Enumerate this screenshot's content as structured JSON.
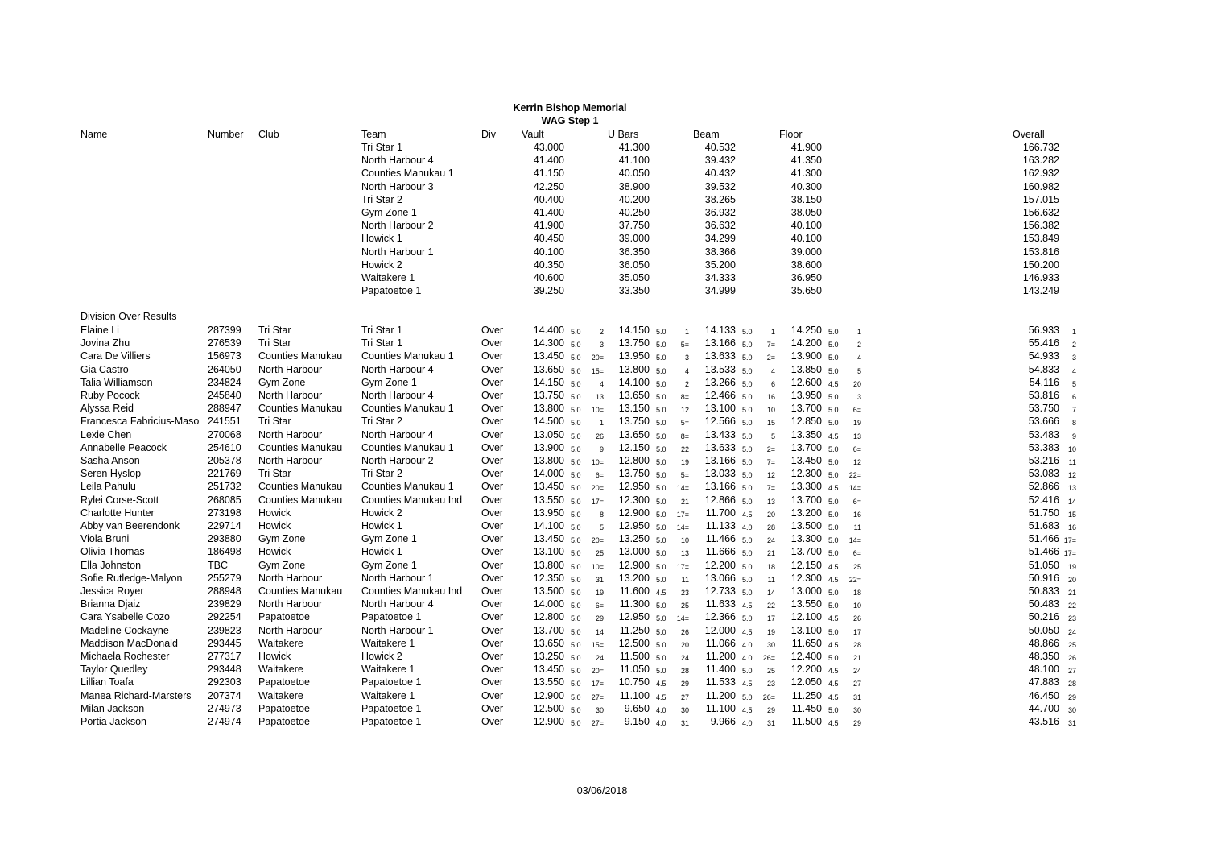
{
  "title": "Kerrin Bishop Memorial",
  "subtitle": "WAG Step 1",
  "headers": {
    "name": "Name",
    "number": "Number",
    "club": "Club",
    "team": "Team",
    "div": "Div",
    "vault": "Vault",
    "ubars": "U Bars",
    "beam": "Beam",
    "floor": "Floor",
    "overall": "Overall"
  },
  "teams": [
    {
      "team": "Tri Star 1",
      "vault": "43.000",
      "ubars": "41.300",
      "beam": "40.532",
      "floor": "41.900",
      "overall": "166.732"
    },
    {
      "team": "North Harbour 4",
      "vault": "41.400",
      "ubars": "41.100",
      "beam": "39.432",
      "floor": "41.350",
      "overall": "163.282"
    },
    {
      "team": "Counties Manukau 1",
      "vault": "41.150",
      "ubars": "40.050",
      "beam": "40.432",
      "floor": "41.300",
      "overall": "162.932"
    },
    {
      "team": "North Harbour 3",
      "vault": "42.250",
      "ubars": "38.900",
      "beam": "39.532",
      "floor": "40.300",
      "overall": "160.982"
    },
    {
      "team": "Tri Star 2",
      "vault": "40.400",
      "ubars": "40.200",
      "beam": "38.265",
      "floor": "38.150",
      "overall": "157.015"
    },
    {
      "team": "Gym Zone 1",
      "vault": "41.400",
      "ubars": "40.250",
      "beam": "36.932",
      "floor": "38.050",
      "overall": "156.632"
    },
    {
      "team": "North Harbour 2",
      "vault": "41.900",
      "ubars": "37.750",
      "beam": "36.632",
      "floor": "40.100",
      "overall": "156.382"
    },
    {
      "team": "Howick 1",
      "vault": "40.450",
      "ubars": "39.000",
      "beam": "34.299",
      "floor": "40.100",
      "overall": "153.849"
    },
    {
      "team": "North Harbour 1",
      "vault": "40.100",
      "ubars": "36.350",
      "beam": "38.366",
      "floor": "39.000",
      "overall": "153.816"
    },
    {
      "team": "Howick 2",
      "vault": "40.350",
      "ubars": "36.050",
      "beam": "35.200",
      "floor": "38.600",
      "overall": "150.200"
    },
    {
      "team": "Waitakere 1",
      "vault": "40.600",
      "ubars": "35.050",
      "beam": "34.333",
      "floor": "36.950",
      "overall": "146.933"
    },
    {
      "team": "Papatoetoe 1",
      "vault": "39.250",
      "ubars": "33.350",
      "beam": "34.999",
      "floor": "35.650",
      "overall": "143.249"
    }
  ],
  "division_heading": "Division Over Results",
  "individuals": [
    {
      "name": "Elaine Li",
      "number": "287399",
      "club": "Tri Star",
      "team": "Tri Star 1",
      "div": "Over",
      "vault": [
        "14.400",
        "5.0",
        "2"
      ],
      "ubars": [
        "14.150",
        "5.0",
        "1"
      ],
      "beam": [
        "14.133",
        "5.0",
        "1"
      ],
      "floor": [
        "14.250",
        "5.0",
        "1"
      ],
      "overall": [
        "56.933",
        "1"
      ]
    },
    {
      "name": "Jovina Zhu",
      "number": "276539",
      "club": "Tri Star",
      "team": "Tri Star 1",
      "div": "Over",
      "vault": [
        "14.300",
        "5.0",
        "3"
      ],
      "ubars": [
        "13.750",
        "5.0",
        "5="
      ],
      "beam": [
        "13.166",
        "5.0",
        "7="
      ],
      "floor": [
        "14.200",
        "5.0",
        "2"
      ],
      "overall": [
        "55.416",
        "2"
      ]
    },
    {
      "name": "Cara De Villiers",
      "number": "156973",
      "club": "Counties Manukau",
      "team": "Counties Manukau 1",
      "div": "Over",
      "vault": [
        "13.450",
        "5.0",
        "20="
      ],
      "ubars": [
        "13.950",
        "5.0",
        "3"
      ],
      "beam": [
        "13.633",
        "5.0",
        "2="
      ],
      "floor": [
        "13.900",
        "5.0",
        "4"
      ],
      "overall": [
        "54.933",
        "3"
      ]
    },
    {
      "name": "Gia Castro",
      "number": "264050",
      "club": "North Harbour",
      "team": "North Harbour 4",
      "div": "Over",
      "vault": [
        "13.650",
        "5.0",
        "15="
      ],
      "ubars": [
        "13.800",
        "5.0",
        "4"
      ],
      "beam": [
        "13.533",
        "5.0",
        "4"
      ],
      "floor": [
        "13.850",
        "5.0",
        "5"
      ],
      "overall": [
        "54.833",
        "4"
      ]
    },
    {
      "name": "Talia Williamson",
      "number": "234824",
      "club": "Gym Zone",
      "team": "Gym Zone 1",
      "div": "Over",
      "vault": [
        "14.150",
        "5.0",
        "4"
      ],
      "ubars": [
        "14.100",
        "5.0",
        "2"
      ],
      "beam": [
        "13.266",
        "5.0",
        "6"
      ],
      "floor": [
        "12.600",
        "4.5",
        "20"
      ],
      "overall": [
        "54.116",
        "5"
      ]
    },
    {
      "name": "Ruby Pocock",
      "number": "245840",
      "club": "North Harbour",
      "team": "North Harbour 4",
      "div": "Over",
      "vault": [
        "13.750",
        "5.0",
        "13"
      ],
      "ubars": [
        "13.650",
        "5.0",
        "8="
      ],
      "beam": [
        "12.466",
        "5.0",
        "16"
      ],
      "floor": [
        "13.950",
        "5.0",
        "3"
      ],
      "overall": [
        "53.816",
        "6"
      ]
    },
    {
      "name": "Alyssa Reid",
      "number": "288947",
      "club": "Counties Manukau",
      "team": "Counties Manukau 1",
      "div": "Over",
      "vault": [
        "13.800",
        "5.0",
        "10="
      ],
      "ubars": [
        "13.150",
        "5.0",
        "12"
      ],
      "beam": [
        "13.100",
        "5.0",
        "10"
      ],
      "floor": [
        "13.700",
        "5.0",
        "6="
      ],
      "overall": [
        "53.750",
        "7"
      ]
    },
    {
      "name": "Francesca Fabricius-Maso",
      "number": "241551",
      "club": "Tri Star",
      "team": "Tri Star 2",
      "div": "Over",
      "vault": [
        "14.500",
        "5.0",
        "1"
      ],
      "ubars": [
        "13.750",
        "5.0",
        "5="
      ],
      "beam": [
        "12.566",
        "5.0",
        "15"
      ],
      "floor": [
        "12.850",
        "5.0",
        "19"
      ],
      "overall": [
        "53.666",
        "8"
      ]
    },
    {
      "name": "Lexie Chen",
      "number": "270068",
      "club": "North Harbour",
      "team": "North Harbour 4",
      "div": "Over",
      "vault": [
        "13.050",
        "5.0",
        "26"
      ],
      "ubars": [
        "13.650",
        "5.0",
        "8="
      ],
      "beam": [
        "13.433",
        "5.0",
        "5"
      ],
      "floor": [
        "13.350",
        "4.5",
        "13"
      ],
      "overall": [
        "53.483",
        "9"
      ]
    },
    {
      "name": "Annabelle Peacock",
      "number": "254610",
      "club": "Counties Manukau",
      "team": "Counties Manukau 1",
      "div": "Over",
      "vault": [
        "13.900",
        "5.0",
        "9"
      ],
      "ubars": [
        "12.150",
        "5.0",
        "22"
      ],
      "beam": [
        "13.633",
        "5.0",
        "2="
      ],
      "floor": [
        "13.700",
        "5.0",
        "6="
      ],
      "overall": [
        "53.383",
        "10"
      ]
    },
    {
      "name": "Sasha Anson",
      "number": "205378",
      "club": "North Harbour",
      "team": "North Harbour 2",
      "div": "Over",
      "vault": [
        "13.800",
        "5.0",
        "10="
      ],
      "ubars": [
        "12.800",
        "5.0",
        "19"
      ],
      "beam": [
        "13.166",
        "5.0",
        "7="
      ],
      "floor": [
        "13.450",
        "5.0",
        "12"
      ],
      "overall": [
        "53.216",
        "11"
      ]
    },
    {
      "name": "Seren Hyslop",
      "number": "221769",
      "club": "Tri Star",
      "team": "Tri Star 2",
      "div": "Over",
      "vault": [
        "14.000",
        "5.0",
        "6="
      ],
      "ubars": [
        "13.750",
        "5.0",
        "5="
      ],
      "beam": [
        "13.033",
        "5.0",
        "12"
      ],
      "floor": [
        "12.300",
        "5.0",
        "22="
      ],
      "overall": [
        "53.083",
        "12"
      ]
    },
    {
      "name": "Leila Pahulu",
      "number": "251732",
      "club": "Counties Manukau",
      "team": "Counties Manukau 1",
      "div": "Over",
      "vault": [
        "13.450",
        "5.0",
        "20="
      ],
      "ubars": [
        "12.950",
        "5.0",
        "14="
      ],
      "beam": [
        "13.166",
        "5.0",
        "7="
      ],
      "floor": [
        "13.300",
        "4.5",
        "14="
      ],
      "overall": [
        "52.866",
        "13"
      ]
    },
    {
      "name": "Rylei Corse-Scott",
      "number": "268085",
      "club": "Counties Manukau",
      "team": "Counties Manukau Ind",
      "div": "Over",
      "vault": [
        "13.550",
        "5.0",
        "17="
      ],
      "ubars": [
        "12.300",
        "5.0",
        "21"
      ],
      "beam": [
        "12.866",
        "5.0",
        "13"
      ],
      "floor": [
        "13.700",
        "5.0",
        "6="
      ],
      "overall": [
        "52.416",
        "14"
      ]
    },
    {
      "name": "Charlotte Hunter",
      "number": "273198",
      "club": "Howick",
      "team": "Howick 2",
      "div": "Over",
      "vault": [
        "13.950",
        "5.0",
        "8"
      ],
      "ubars": [
        "12.900",
        "5.0",
        "17="
      ],
      "beam": [
        "11.700",
        "4.5",
        "20"
      ],
      "floor": [
        "13.200",
        "5.0",
        "16"
      ],
      "overall": [
        "51.750",
        "15"
      ]
    },
    {
      "name": "Abby van Beerendonk",
      "number": "229714",
      "club": "Howick",
      "team": "Howick 1",
      "div": "Over",
      "vault": [
        "14.100",
        "5.0",
        "5"
      ],
      "ubars": [
        "12.950",
        "5.0",
        "14="
      ],
      "beam": [
        "11.133",
        "4.0",
        "28"
      ],
      "floor": [
        "13.500",
        "5.0",
        "11"
      ],
      "overall": [
        "51.683",
        "16"
      ]
    },
    {
      "name": "Viola Bruni",
      "number": "293880",
      "club": "Gym Zone",
      "team": "Gym Zone 1",
      "div": "Over",
      "vault": [
        "13.450",
        "5.0",
        "20="
      ],
      "ubars": [
        "13.250",
        "5.0",
        "10"
      ],
      "beam": [
        "11.466",
        "5.0",
        "24"
      ],
      "floor": [
        "13.300",
        "5.0",
        "14="
      ],
      "overall": [
        "51.466",
        "17="
      ]
    },
    {
      "name": "Olivia Thomas",
      "number": "186498",
      "club": "Howick",
      "team": "Howick 1",
      "div": "Over",
      "vault": [
        "13.100",
        "5.0",
        "25"
      ],
      "ubars": [
        "13.000",
        "5.0",
        "13"
      ],
      "beam": [
        "11.666",
        "5.0",
        "21"
      ],
      "floor": [
        "13.700",
        "5.0",
        "6="
      ],
      "overall": [
        "51.466",
        "17="
      ]
    },
    {
      "name": "Ella Johnston",
      "number": "TBC",
      "club": "Gym Zone",
      "team": "Gym Zone 1",
      "div": "Over",
      "vault": [
        "13.800",
        "5.0",
        "10="
      ],
      "ubars": [
        "12.900",
        "5.0",
        "17="
      ],
      "beam": [
        "12.200",
        "5.0",
        "18"
      ],
      "floor": [
        "12.150",
        "4.5",
        "25"
      ],
      "overall": [
        "51.050",
        "19"
      ]
    },
    {
      "name": "Sofie Rutledge-Malyon",
      "number": "255279",
      "club": "North Harbour",
      "team": "North Harbour 1",
      "div": "Over",
      "vault": [
        "12.350",
        "5.0",
        "31"
      ],
      "ubars": [
        "13.200",
        "5.0",
        "11"
      ],
      "beam": [
        "13.066",
        "5.0",
        "11"
      ],
      "floor": [
        "12.300",
        "4.5",
        "22="
      ],
      "overall": [
        "50.916",
        "20"
      ]
    },
    {
      "name": "Jessica Royer",
      "number": "288948",
      "club": "Counties Manukau",
      "team": "Counties Manukau Ind",
      "div": "Over",
      "vault": [
        "13.500",
        "5.0",
        "19"
      ],
      "ubars": [
        "11.600",
        "4.5",
        "23"
      ],
      "beam": [
        "12.733",
        "5.0",
        "14"
      ],
      "floor": [
        "13.000",
        "5.0",
        "18"
      ],
      "overall": [
        "50.833",
        "21"
      ]
    },
    {
      "name": "Brianna Djaiz",
      "number": "239829",
      "club": "North Harbour",
      "team": "North Harbour 4",
      "div": "Over",
      "vault": [
        "14.000",
        "5.0",
        "6="
      ],
      "ubars": [
        "11.300",
        "5.0",
        "25"
      ],
      "beam": [
        "11.633",
        "4.5",
        "22"
      ],
      "floor": [
        "13.550",
        "5.0",
        "10"
      ],
      "overall": [
        "50.483",
        "22"
      ]
    },
    {
      "name": "Cara Ysabelle Cozo",
      "number": "292254",
      "club": "Papatoetoe",
      "team": "Papatoetoe 1",
      "div": "Over",
      "vault": [
        "12.800",
        "5.0",
        "29"
      ],
      "ubars": [
        "12.950",
        "5.0",
        "14="
      ],
      "beam": [
        "12.366",
        "5.0",
        "17"
      ],
      "floor": [
        "12.100",
        "4.5",
        "26"
      ],
      "overall": [
        "50.216",
        "23"
      ]
    },
    {
      "name": "Madeline Cockayne",
      "number": "239823",
      "club": "North Harbour",
      "team": "North Harbour 1",
      "div": "Over",
      "vault": [
        "13.700",
        "5.0",
        "14"
      ],
      "ubars": [
        "11.250",
        "5.0",
        "26"
      ],
      "beam": [
        "12.000",
        "4.5",
        "19"
      ],
      "floor": [
        "13.100",
        "5.0",
        "17"
      ],
      "overall": [
        "50.050",
        "24"
      ]
    },
    {
      "name": "Maddison MacDonald",
      "number": "293445",
      "club": "Waitakere",
      "team": "Waitakere 1",
      "div": "Over",
      "vault": [
        "13.650",
        "5.0",
        "15="
      ],
      "ubars": [
        "12.500",
        "5.0",
        "20"
      ],
      "beam": [
        "11.066",
        "4.0",
        "30"
      ],
      "floor": [
        "11.650",
        "4.5",
        "28"
      ],
      "overall": [
        "48.866",
        "25"
      ]
    },
    {
      "name": "Michaela Rochester",
      "number": "277317",
      "club": "Howick",
      "team": "Howick 2",
      "div": "Over",
      "vault": [
        "13.250",
        "5.0",
        "24"
      ],
      "ubars": [
        "11.500",
        "5.0",
        "24"
      ],
      "beam": [
        "11.200",
        "4.0",
        "26="
      ],
      "floor": [
        "12.400",
        "5.0",
        "21"
      ],
      "overall": [
        "48.350",
        "26"
      ]
    },
    {
      "name": "Taylor Quedley",
      "number": "293448",
      "club": "Waitakere",
      "team": "Waitakere 1",
      "div": "Over",
      "vault": [
        "13.450",
        "5.0",
        "20="
      ],
      "ubars": [
        "11.050",
        "5.0",
        "28"
      ],
      "beam": [
        "11.400",
        "5.0",
        "25"
      ],
      "floor": [
        "12.200",
        "4.5",
        "24"
      ],
      "overall": [
        "48.100",
        "27"
      ]
    },
    {
      "name": "Lillian Toafa",
      "number": "292303",
      "club": "Papatoetoe",
      "team": "Papatoetoe 1",
      "div": "Over",
      "vault": [
        "13.550",
        "5.0",
        "17="
      ],
      "ubars": [
        "10.750",
        "4.5",
        "29"
      ],
      "beam": [
        "11.533",
        "4.5",
        "23"
      ],
      "floor": [
        "12.050",
        "4.5",
        "27"
      ],
      "overall": [
        "47.883",
        "28"
      ]
    },
    {
      "name": "Manea Richard-Marsters",
      "number": "207374",
      "club": "Waitakere",
      "team": "Waitakere 1",
      "div": "Over",
      "vault": [
        "12.900",
        "5.0",
        "27="
      ],
      "ubars": [
        "11.100",
        "4.5",
        "27"
      ],
      "beam": [
        "11.200",
        "5.0",
        "26="
      ],
      "floor": [
        "11.250",
        "4.5",
        "31"
      ],
      "overall": [
        "46.450",
        "29"
      ]
    },
    {
      "name": "Milan Jackson",
      "number": "274973",
      "club": "Papatoetoe",
      "team": "Papatoetoe 1",
      "div": "Over",
      "vault": [
        "12.500",
        "5.0",
        "30"
      ],
      "ubars": [
        "9.650",
        "4.0",
        "30"
      ],
      "beam": [
        "11.100",
        "4.5",
        "29"
      ],
      "floor": [
        "11.450",
        "5.0",
        "30"
      ],
      "overall": [
        "44.700",
        "30"
      ]
    },
    {
      "name": "Portia Jackson",
      "number": "274974",
      "club": "Papatoetoe",
      "team": "Papatoetoe 1",
      "div": "Over",
      "vault": [
        "12.900",
        "5.0",
        "27="
      ],
      "ubars": [
        "9.150",
        "4.0",
        "31"
      ],
      "beam": [
        "9.966",
        "4.0",
        "31"
      ],
      "floor": [
        "11.500",
        "4.5",
        "29"
      ],
      "overall": [
        "43.516",
        "31"
      ]
    }
  ],
  "footer_date": "03/06/2018"
}
